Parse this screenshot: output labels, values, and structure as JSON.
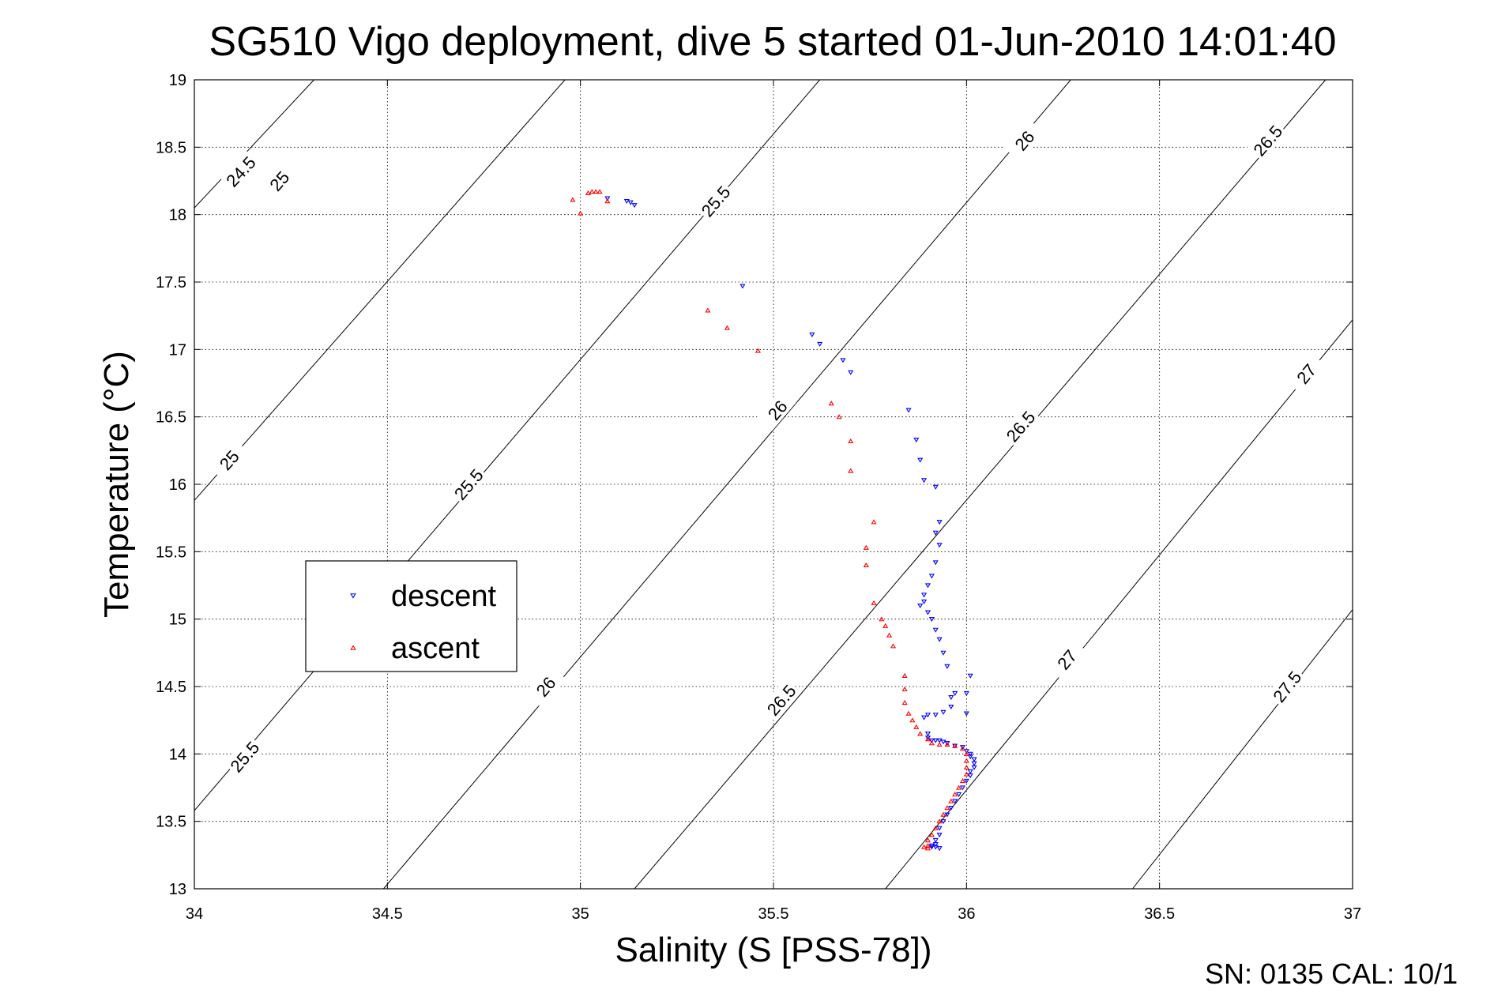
{
  "chart_data": {
    "type": "scatter",
    "title": "SG510 Vigo deployment, dive 5 started 01-Jun-2010 14:01:40",
    "xlabel": "Salinity (S [PSS-78])",
    "ylabel": "Temperature (°C)",
    "xlim": [
      34,
      37
    ],
    "ylim": [
      13,
      19
    ],
    "xticks": [
      "34",
      "34.5",
      "35",
      "35.5",
      "36",
      "36.5",
      "37"
    ],
    "yticks": [
      "13",
      "13.5",
      "14",
      "14.5",
      "15",
      "15.5",
      "16",
      "16.5",
      "17",
      "17.5",
      "18",
      "18.5",
      "19"
    ],
    "grid": true,
    "legend": {
      "location": "center-left",
      "entries": [
        {
          "label": "descent",
          "color": "#0000ff",
          "marker": "triangle-down"
        },
        {
          "label": "ascent",
          "color": "#ff0000",
          "marker": "triangle-up"
        }
      ]
    },
    "density_contours": [
      {
        "sigma": "24.5",
        "points": [
          [
            34.0,
            18.05
          ],
          [
            34.31,
            19.0
          ]
        ],
        "label_at": [
          34.12,
          18.32
        ]
      },
      {
        "sigma": "25",
        "points": [
          [
            34.0,
            15.88
          ],
          [
            34.96,
            19.0
          ]
        ],
        "label_at": [
          34.22,
          18.25
        ],
        "label2_at": [
          34.09,
          16.18
        ]
      },
      {
        "sigma": "25.5",
        "points": [
          [
            34.0,
            13.58
          ],
          [
            35.62,
            19.0
          ]
        ],
        "label_at": [
          34.13,
          13.98
        ],
        "label2_at": [
          34.71,
          16.0
        ],
        "label3_at": [
          35.35,
          18.1
        ]
      },
      {
        "sigma": "26",
        "points": [
          [
            34.49,
            13.0
          ],
          [
            36.27,
            19.0
          ]
        ],
        "label_at": [
          34.91,
          14.5
        ],
        "label2_at": [
          35.51,
          16.55
        ],
        "label3_at": [
          36.15,
          18.55
        ]
      },
      {
        "sigma": "26.5",
        "points": [
          [
            35.14,
            13.0
          ],
          [
            36.93,
            19.0
          ]
        ],
        "label_at": [
          35.52,
          14.4
        ],
        "label2_at": [
          36.14,
          16.43
        ],
        "label3_at": [
          36.78,
          18.55
        ]
      },
      {
        "sigma": "27",
        "points": [
          [
            35.79,
            13.0
          ],
          [
            37.0,
            17.22
          ]
        ],
        "label_at": [
          36.26,
          14.7
        ],
        "label2_at": [
          36.88,
          16.82
        ]
      },
      {
        "sigma": "27.5",
        "points": [
          [
            36.43,
            13.0
          ],
          [
            37.0,
            15.07
          ]
        ],
        "label_at": [
          36.83,
          14.5
        ]
      }
    ],
    "series": [
      {
        "name": "descent",
        "color": "#0000ff",
        "points": [
          [
            35.07,
            18.12
          ],
          [
            35.12,
            18.1
          ],
          [
            35.13,
            18.09
          ],
          [
            35.14,
            18.07
          ],
          [
            35.42,
            17.47
          ],
          [
            35.6,
            17.11
          ],
          [
            35.62,
            17.04
          ],
          [
            35.68,
            16.92
          ],
          [
            35.7,
            16.83
          ],
          [
            35.85,
            16.55
          ],
          [
            35.87,
            16.33
          ],
          [
            35.88,
            16.18
          ],
          [
            35.89,
            16.03
          ],
          [
            35.92,
            15.98
          ],
          [
            35.93,
            15.72
          ],
          [
            35.92,
            15.64
          ],
          [
            35.93,
            15.55
          ],
          [
            35.92,
            15.42
          ],
          [
            35.91,
            15.32
          ],
          [
            35.9,
            15.25
          ],
          [
            35.89,
            15.18
          ],
          [
            35.89,
            15.13
          ],
          [
            35.88,
            15.1
          ],
          [
            35.9,
            15.05
          ],
          [
            35.91,
            15.0
          ],
          [
            35.92,
            14.92
          ],
          [
            35.93,
            14.85
          ],
          [
            35.94,
            14.75
          ],
          [
            35.95,
            14.65
          ],
          [
            36.01,
            14.58
          ],
          [
            36.0,
            14.45
          ],
          [
            35.97,
            14.45
          ],
          [
            35.96,
            14.42
          ],
          [
            35.96,
            14.35
          ],
          [
            35.94,
            14.31
          ],
          [
            35.92,
            14.29
          ],
          [
            35.9,
            14.29
          ],
          [
            35.89,
            14.27
          ],
          [
            36.0,
            14.3
          ],
          [
            35.9,
            14.15
          ],
          [
            35.9,
            14.12
          ],
          [
            35.91,
            14.1
          ],
          [
            35.92,
            14.1
          ],
          [
            35.93,
            14.1
          ],
          [
            35.94,
            14.09
          ],
          [
            35.95,
            14.08
          ],
          [
            35.97,
            14.06
          ],
          [
            35.99,
            14.05
          ],
          [
            36.0,
            14.02
          ],
          [
            36.01,
            14.0
          ],
          [
            36.01,
            13.98
          ],
          [
            36.02,
            13.96
          ],
          [
            36.02,
            13.93
          ],
          [
            36.02,
            13.9
          ],
          [
            36.01,
            13.87
          ],
          [
            36.01,
            13.84
          ],
          [
            36.0,
            13.8
          ],
          [
            35.99,
            13.75
          ],
          [
            35.98,
            13.7
          ],
          [
            35.97,
            13.65
          ],
          [
            35.96,
            13.6
          ],
          [
            35.95,
            13.55
          ],
          [
            35.94,
            13.5
          ],
          [
            35.93,
            13.45
          ],
          [
            35.93,
            13.4
          ],
          [
            35.92,
            13.36
          ],
          [
            35.92,
            13.33
          ],
          [
            35.91,
            13.32
          ],
          [
            35.91,
            13.31
          ],
          [
            35.92,
            13.31
          ],
          [
            35.93,
            13.3
          ]
        ]
      },
      {
        "name": "ascent",
        "color": "#ff0000",
        "points": [
          [
            34.98,
            18.11
          ],
          [
            35.0,
            18.01
          ],
          [
            35.02,
            18.16
          ],
          [
            35.03,
            18.17
          ],
          [
            35.04,
            18.17
          ],
          [
            35.05,
            18.17
          ],
          [
            35.07,
            18.1
          ],
          [
            35.33,
            17.29
          ],
          [
            35.38,
            17.16
          ],
          [
            35.46,
            16.99
          ],
          [
            35.65,
            16.6
          ],
          [
            35.67,
            16.5
          ],
          [
            35.7,
            16.32
          ],
          [
            35.7,
            16.1
          ],
          [
            35.76,
            15.72
          ],
          [
            35.74,
            15.53
          ],
          [
            35.74,
            15.4
          ],
          [
            35.76,
            15.12
          ],
          [
            35.78,
            15.0
          ],
          [
            35.79,
            14.95
          ],
          [
            35.8,
            14.88
          ],
          [
            35.81,
            14.8
          ],
          [
            35.84,
            14.58
          ],
          [
            35.84,
            14.48
          ],
          [
            35.84,
            14.38
          ],
          [
            35.85,
            14.3
          ],
          [
            35.86,
            14.25
          ],
          [
            35.87,
            14.2
          ],
          [
            35.88,
            14.15
          ],
          [
            35.9,
            14.11
          ],
          [
            35.91,
            14.08
          ],
          [
            35.93,
            14.07
          ],
          [
            35.95,
            14.07
          ],
          [
            35.97,
            14.06
          ],
          [
            35.99,
            14.04
          ],
          [
            36.0,
            14.0
          ],
          [
            36.0,
            13.95
          ],
          [
            36.0,
            13.9
          ],
          [
            36.0,
            13.85
          ],
          [
            35.99,
            13.8
          ],
          [
            35.98,
            13.75
          ],
          [
            35.97,
            13.7
          ],
          [
            35.96,
            13.65
          ],
          [
            35.95,
            13.6
          ],
          [
            35.94,
            13.55
          ],
          [
            35.93,
            13.5
          ],
          [
            35.92,
            13.45
          ],
          [
            35.91,
            13.4
          ],
          [
            35.9,
            13.36
          ],
          [
            35.9,
            13.32
          ],
          [
            35.89,
            13.31
          ],
          [
            35.9,
            13.3
          ]
        ]
      }
    ]
  },
  "footer": {
    "text": "SN: 0135  CAL: 10/1"
  }
}
